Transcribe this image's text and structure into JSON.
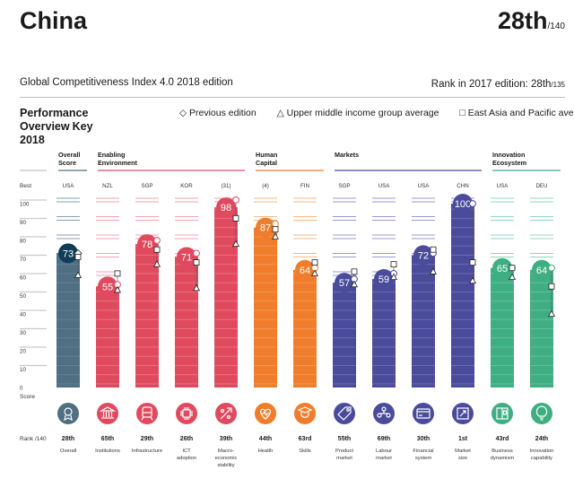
{
  "header": {
    "country": "China",
    "rank": "28th",
    "rank_total": "/140",
    "edition": "Global Competitiveness Index 4.0 2018 edition",
    "prev_rank_label": "Rank in 2017 edition: 28th",
    "prev_rank_total": "/135"
  },
  "overview": {
    "title": "Performance Overview",
    "year": "2018",
    "key_label": "Key",
    "legend": {
      "previous": "Previous edition",
      "upper_middle": "Upper middle income group average",
      "east_asia": "East Asia and Pacific average"
    }
  },
  "axis": {
    "best_label": "Best",
    "score_label": "Score",
    "rank_label": "Rank /140"
  },
  "groups": [
    {
      "label_line1": "Overall",
      "label_line2": "Score",
      "color": "#4f6f83"
    },
    {
      "label_line1": "Enabling",
      "label_line2": "Environment",
      "color": "#e04a5f"
    },
    {
      "label_line1": "Human",
      "label_line2": "Capital",
      "color": "#ef7d2b"
    },
    {
      "label_line1": "Markets",
      "label_line2": "",
      "color": "#4b4b9c"
    },
    {
      "label_line1": "Innovation",
      "label_line2": "Ecosystem",
      "color": "#3fae82"
    }
  ],
  "colors": {
    "overall": "#4f6f83",
    "overall_light": "#7b95a6",
    "overall_dark": "#0f3d58",
    "enabling": "#e04a5f",
    "enabling_light": "#f19aa8",
    "human": "#ef7d2b",
    "human_light": "#f6b27c",
    "markets": "#4b4b9c",
    "markets_light": "#8f8ecb",
    "innovation": "#3fae82",
    "innovation_light": "#86d3b3"
  },
  "chart_data": {
    "type": "bar",
    "title": "Performance Overview 2018",
    "ylim": [
      0,
      100
    ],
    "yticks": [
      0,
      10,
      20,
      30,
      40,
      50,
      60,
      70,
      80,
      90,
      100
    ],
    "categories": [
      "Overall",
      "Institutions",
      "Infrastructure",
      "ICT adoption",
      "Macro-economic stability",
      "Health",
      "Skills",
      "Product market",
      "Labour market",
      "Financial system",
      "Market size",
      "Business dynamism",
      "Innovation capability"
    ],
    "pillars": [
      {
        "name_lines": [
          "Overall"
        ],
        "best": "USA",
        "score": 73,
        "rank": "28th",
        "group": "overall",
        "icon": "medal-icon",
        "previous": 73,
        "upper_middle": 61,
        "east_asia": 71
      },
      {
        "name_lines": [
          "Institutions"
        ],
        "best": "NZL",
        "score": 55,
        "rank": "65th",
        "group": "enabling",
        "icon": "institution-icon",
        "previous": 56,
        "upper_middle": 53,
        "east_asia": 62
      },
      {
        "name_lines": [
          "Infrastructure"
        ],
        "best": "SGP",
        "score": 78,
        "rank": "29th",
        "group": "enabling",
        "icon": "infrastructure-icon",
        "previous": 80,
        "upper_middle": 67,
        "east_asia": 75
      },
      {
        "name_lines": [
          "ICT",
          "adoption"
        ],
        "best": "KOR",
        "score": 71,
        "rank": "26th",
        "group": "enabling",
        "icon": "ict-chip-icon",
        "previous": 73,
        "upper_middle": 54,
        "east_asia": 68
      },
      {
        "name_lines": [
          "Macro-",
          "economic",
          "stability"
        ],
        "best": "(31)",
        "score": 98,
        "rank": "39th",
        "group": "enabling",
        "icon": "macro-stability-icon",
        "previous": 102,
        "upper_middle": 78,
        "east_asia": 92
      },
      {
        "name_lines": [
          "Health"
        ],
        "best": "(4)",
        "score": 87,
        "rank": "44th",
        "group": "human",
        "icon": "health-icon",
        "previous": 89,
        "upper_middle": 82,
        "east_asia": 86
      },
      {
        "name_lines": [
          "Skills"
        ],
        "best": "FIN",
        "score": 64,
        "rank": "63rd",
        "group": "human",
        "icon": "skills-icon",
        "previous": 65,
        "upper_middle": 62,
        "east_asia": 68
      },
      {
        "name_lines": [
          "Product",
          "market"
        ],
        "best": "SGP",
        "score": 57,
        "rank": "55th",
        "group": "markets",
        "icon": "product-market-icon",
        "previous": 59,
        "upper_middle": 56,
        "east_asia": 63
      },
      {
        "name_lines": [
          "Labour",
          "market"
        ],
        "best": "USA",
        "score": 59,
        "rank": "69th",
        "group": "markets",
        "icon": "labour-market-icon",
        "previous": 62,
        "upper_middle": 60,
        "east_asia": 67
      },
      {
        "name_lines": [
          "Financial",
          "system"
        ],
        "best": "USA",
        "score": 72,
        "rank": "30th",
        "group": "markets",
        "icon": "financial-system-icon",
        "previous": 73,
        "upper_middle": 63,
        "east_asia": 75
      },
      {
        "name_lines": [
          "Market",
          "size"
        ],
        "best": "CHN",
        "score": 100,
        "rank": "1st",
        "group": "markets",
        "icon": "market-size-icon",
        "previous": 100,
        "upper_middle": 58,
        "east_asia": 68
      },
      {
        "name_lines": [
          "Business",
          "dynamism"
        ],
        "best": "USA",
        "score": 65,
        "rank": "43rd",
        "group": "innovation",
        "icon": "business-dynamism-icon",
        "previous": 65,
        "upper_middle": 60,
        "east_asia": 65
      },
      {
        "name_lines": [
          "Innovation",
          "capability"
        ],
        "best": "DEU",
        "score": 64,
        "rank": "24th",
        "group": "innovation",
        "icon": "innovation-lightbulb-icon",
        "previous": 65,
        "upper_middle": 40,
        "east_asia": 55
      }
    ]
  }
}
